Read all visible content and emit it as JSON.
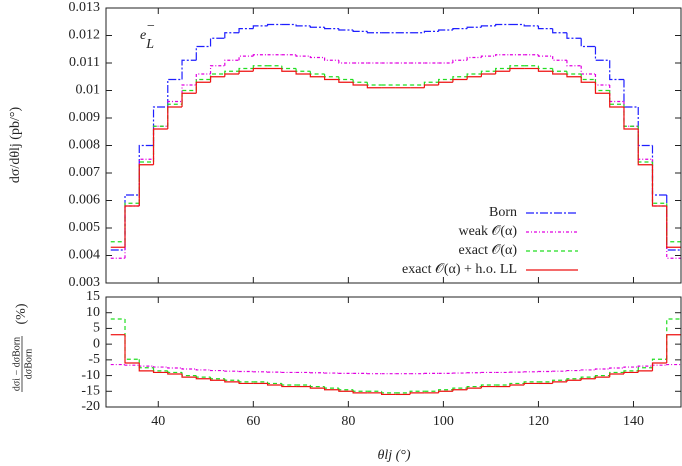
{
  "chart_data": [
    {
      "type": "histogram",
      "ylabel": "dσ/dθlj (pb/°)",
      "annotation": {
        "base": "e",
        "sub": "L",
        "sup": "−"
      },
      "bins": [
        30,
        33,
        36,
        39,
        42,
        45,
        48,
        51,
        54,
        57,
        60,
        63,
        66,
        69,
        72,
        75,
        78,
        81,
        84,
        87,
        90,
        93,
        96,
        99,
        102,
        105,
        108,
        111,
        114,
        117,
        120,
        123,
        126,
        129,
        132,
        135,
        138,
        141,
        144,
        147,
        150
      ],
      "xlim": [
        29,
        150
      ],
      "xticks": [
        40,
        60,
        80,
        100,
        120,
        140
      ],
      "ylim": [
        0.003,
        0.013
      ],
      "yticks": [
        0.003,
        0.004,
        0.005,
        0.006,
        0.007,
        0.008,
        0.009,
        0.01,
        0.011,
        0.012,
        0.013
      ],
      "legend": "lower right",
      "series": [
        {
          "name": "Born",
          "color": "#1f1fff",
          "dash": "8,2,2,2",
          "values": [
            0.0042,
            0.0062,
            0.008,
            0.0094,
            0.0104,
            0.0111,
            0.0116,
            0.0119,
            0.0121,
            0.01225,
            0.01235,
            0.0124,
            0.0124,
            0.01235,
            0.0123,
            0.01225,
            0.0122,
            0.01215,
            0.0121,
            0.0121,
            0.0121,
            0.0121,
            0.01215,
            0.0122,
            0.01225,
            0.0123,
            0.01235,
            0.0124,
            0.0124,
            0.01235,
            0.01225,
            0.0121,
            0.0119,
            0.0116,
            0.0111,
            0.0104,
            0.0094,
            0.008,
            0.0062,
            0.0042
          ]
        },
        {
          "name": "weak 𝒪(α)",
          "color": "#e000e0",
          "dash": "3,2,1,2",
          "values": [
            0.0039,
            0.0058,
            0.0075,
            0.0087,
            0.0096,
            0.0102,
            0.0106,
            0.0109,
            0.0111,
            0.01125,
            0.0113,
            0.0113,
            0.0113,
            0.01125,
            0.0112,
            0.0111,
            0.011,
            0.011,
            0.011,
            0.011,
            0.011,
            0.011,
            0.011,
            0.011,
            0.0111,
            0.0112,
            0.01125,
            0.0113,
            0.0113,
            0.0113,
            0.01125,
            0.0111,
            0.0109,
            0.0106,
            0.0102,
            0.0096,
            0.0087,
            0.0075,
            0.0058,
            0.0039
          ]
        },
        {
          "name": "exact 𝒪(α)",
          "color": "#22dd22",
          "dash": "4,3",
          "values": [
            0.0045,
            0.0059,
            0.0074,
            0.0087,
            0.0095,
            0.01,
            0.0104,
            0.0106,
            0.0107,
            0.0108,
            0.0109,
            0.0109,
            0.0108,
            0.0107,
            0.0106,
            0.0105,
            0.0104,
            0.0103,
            0.0102,
            0.0102,
            0.0102,
            0.0102,
            0.0103,
            0.0104,
            0.0105,
            0.0106,
            0.0107,
            0.0108,
            0.0109,
            0.0109,
            0.0108,
            0.0107,
            0.0106,
            0.0104,
            0.01,
            0.0095,
            0.0087,
            0.0074,
            0.0059,
            0.0045
          ]
        },
        {
          "name": "exact 𝒪(α) + h.o. LL",
          "color": "#ee1111",
          "dash": "",
          "values": [
            0.0043,
            0.0058,
            0.0073,
            0.0086,
            0.0094,
            0.0099,
            0.0103,
            0.0105,
            0.0106,
            0.0107,
            0.0108,
            0.0108,
            0.0107,
            0.0106,
            0.0105,
            0.0104,
            0.0103,
            0.0102,
            0.0101,
            0.0101,
            0.0101,
            0.0101,
            0.0102,
            0.0103,
            0.0104,
            0.0105,
            0.0106,
            0.0107,
            0.0108,
            0.0108,
            0.0107,
            0.0106,
            0.0105,
            0.0103,
            0.0099,
            0.0094,
            0.0086,
            0.0073,
            0.0058,
            0.0043
          ]
        }
      ]
    },
    {
      "type": "histogram",
      "xlabel": "θlj (°)",
      "ylabel": {
        "numerator": "dσi − dσBorn",
        "denominator": "dσBorn",
        "unit": "(%)"
      },
      "bins": [
        30,
        33,
        36,
        39,
        42,
        45,
        48,
        51,
        54,
        57,
        60,
        63,
        66,
        69,
        72,
        75,
        78,
        81,
        84,
        87,
        90,
        93,
        96,
        99,
        102,
        105,
        108,
        111,
        114,
        117,
        120,
        123,
        126,
        129,
        132,
        135,
        138,
        141,
        144,
        147,
        150
      ],
      "xlim": [
        29,
        150
      ],
      "xticks": [
        40,
        60,
        80,
        100,
        120,
        140
      ],
      "ylim": [
        -20,
        15
      ],
      "yticks": [
        -20,
        -15,
        -10,
        -5,
        0,
        5,
        10,
        15
      ],
      "series": [
        {
          "color": "#e000e0",
          "dash": "3,2,1,2",
          "values": [
            -6.5,
            -6.7,
            -7,
            -7.3,
            -7.6,
            -7.9,
            -8.2,
            -8.4,
            -8.6,
            -8.7,
            -8.8,
            -8.9,
            -9,
            -9,
            -9.1,
            -9.2,
            -9.3,
            -9.3,
            -9.4,
            -9.4,
            -9.4,
            -9.4,
            -9.3,
            -9.3,
            -9.2,
            -9.1,
            -9,
            -9,
            -8.9,
            -8.8,
            -8.7,
            -8.6,
            -8.4,
            -8.2,
            -7.9,
            -7.6,
            -7.3,
            -7,
            -6.7,
            -6.5
          ]
        },
        {
          "color": "#22dd22",
          "dash": "4,3",
          "values": [
            8,
            -4.8,
            -7.5,
            -8.5,
            -9,
            -10,
            -10.5,
            -11,
            -11.5,
            -12,
            -12,
            -12.5,
            -13,
            -13,
            -13.5,
            -14,
            -14.5,
            -15,
            -15,
            -15.5,
            -15.5,
            -15,
            -15,
            -14.5,
            -14,
            -13.5,
            -13,
            -13,
            -12.5,
            -12,
            -12,
            -11.5,
            -11,
            -10.5,
            -10,
            -9,
            -8.5,
            -7.5,
            -4.8,
            8
          ]
        },
        {
          "color": "#ee1111",
          "dash": "",
          "values": [
            3,
            -6,
            -8.5,
            -9,
            -9.5,
            -10.5,
            -11,
            -11.5,
            -12,
            -12.5,
            -12.5,
            -13,
            -13.5,
            -13.5,
            -14,
            -14.5,
            -15,
            -15.5,
            -15.5,
            -16,
            -16,
            -15.5,
            -15.5,
            -15,
            -14.5,
            -14,
            -13.5,
            -13.5,
            -13,
            -12.5,
            -12.5,
            -12,
            -11.5,
            -11,
            -10.5,
            -9.5,
            -9,
            -8.5,
            -6,
            3
          ]
        }
      ]
    }
  ]
}
